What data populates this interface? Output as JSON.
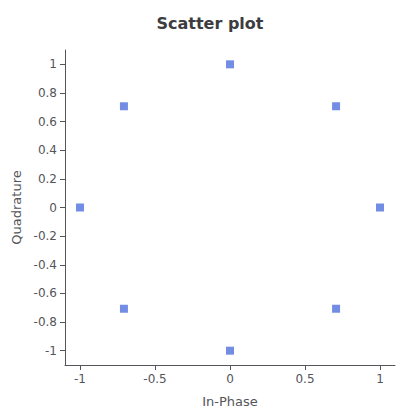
{
  "chart_data": {
    "type": "scatter",
    "title": "Scatter plot",
    "xlabel": "In-Phase",
    "ylabel": "Quadrature",
    "x": [
      -1.0,
      -0.7071,
      -0.7071,
      0.0,
      0.0,
      0.7071,
      0.7071,
      1.0
    ],
    "y": [
      0.0,
      0.7071,
      -0.7071,
      1.0,
      -1.0,
      0.7071,
      -0.7071,
      0.0
    ],
    "marker": "square",
    "xlim": [
      -1.1,
      1.1
    ],
    "ylim": [
      -1.1,
      1.1
    ],
    "xticks": [
      -1.0,
      -0.5,
      0.0,
      0.5,
      1.0
    ],
    "yticks": [
      -1.0,
      -0.8,
      -0.6,
      -0.4,
      -0.2,
      0.0,
      0.2,
      0.4,
      0.6,
      0.8,
      1.0
    ],
    "grid": false
  }
}
